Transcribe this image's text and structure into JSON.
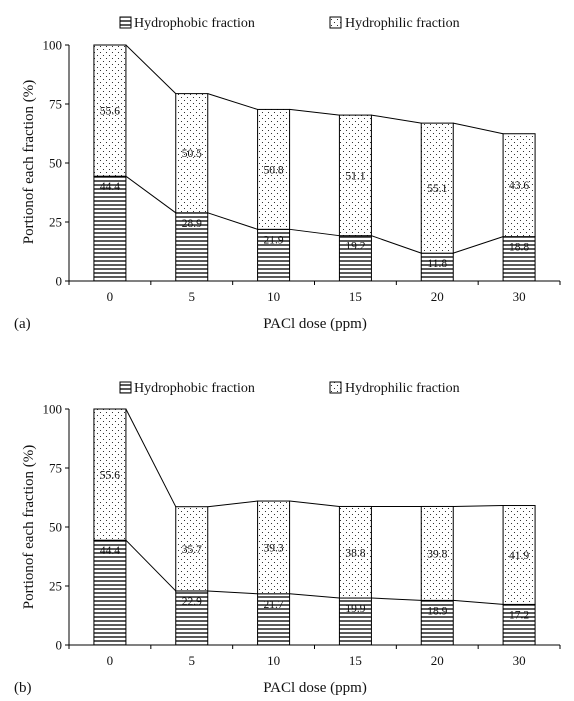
{
  "chart_data": [
    {
      "type": "bar",
      "stacked": true,
      "panel_label": "(a)",
      "categories": [
        "0",
        "5",
        "10",
        "15",
        "20",
        "30"
      ],
      "series": [
        {
          "name": "Hydrophobic fraction",
          "values": [
            44.4,
            28.9,
            21.9,
            19.2,
            11.8,
            18.8
          ],
          "labels": [
            "44.4",
            "28.9",
            "21.9",
            "19.2",
            "11.8",
            "18.8"
          ]
        },
        {
          "name": "Hydrophilic fraction",
          "values": [
            55.6,
            50.5,
            50.8,
            51.1,
            55.1,
            43.6
          ],
          "labels": [
            "55.6",
            "50.5",
            "50.8",
            "51.1",
            "55.1",
            "43.6"
          ]
        }
      ],
      "xlabel": "PACl dose (ppm)",
      "ylabel": "Portionof each fraction (%)",
      "ylim": [
        0,
        100
      ],
      "yticks": [
        "0",
        "25",
        "50",
        "75",
        "100"
      ],
      "legend": "top",
      "grid": false
    },
    {
      "type": "bar",
      "stacked": true,
      "panel_label": "(b)",
      "categories": [
        "0",
        "5",
        "10",
        "15",
        "20",
        "30"
      ],
      "series": [
        {
          "name": "Hydrophobic fraction",
          "values": [
            44.4,
            22.9,
            21.7,
            19.9,
            18.9,
            17.2
          ],
          "labels": [
            "44.4",
            "22.9",
            "21.7",
            "19.9",
            "18.9",
            "17.2"
          ]
        },
        {
          "name": "Hydrophilic fraction",
          "values": [
            55.6,
            35.7,
            39.3,
            38.8,
            39.8,
            41.9
          ],
          "labels": [
            "55.6",
            "35.7",
            "39.3",
            "38.8",
            "39.8",
            "41.9"
          ]
        }
      ],
      "xlabel": "PACl dose (ppm)",
      "ylabel": "Portionof each fraction (%)",
      "ylim": [
        0,
        100
      ],
      "yticks": [
        "0",
        "25",
        "50",
        "75",
        "100"
      ],
      "legend": "top",
      "grid": false
    }
  ]
}
